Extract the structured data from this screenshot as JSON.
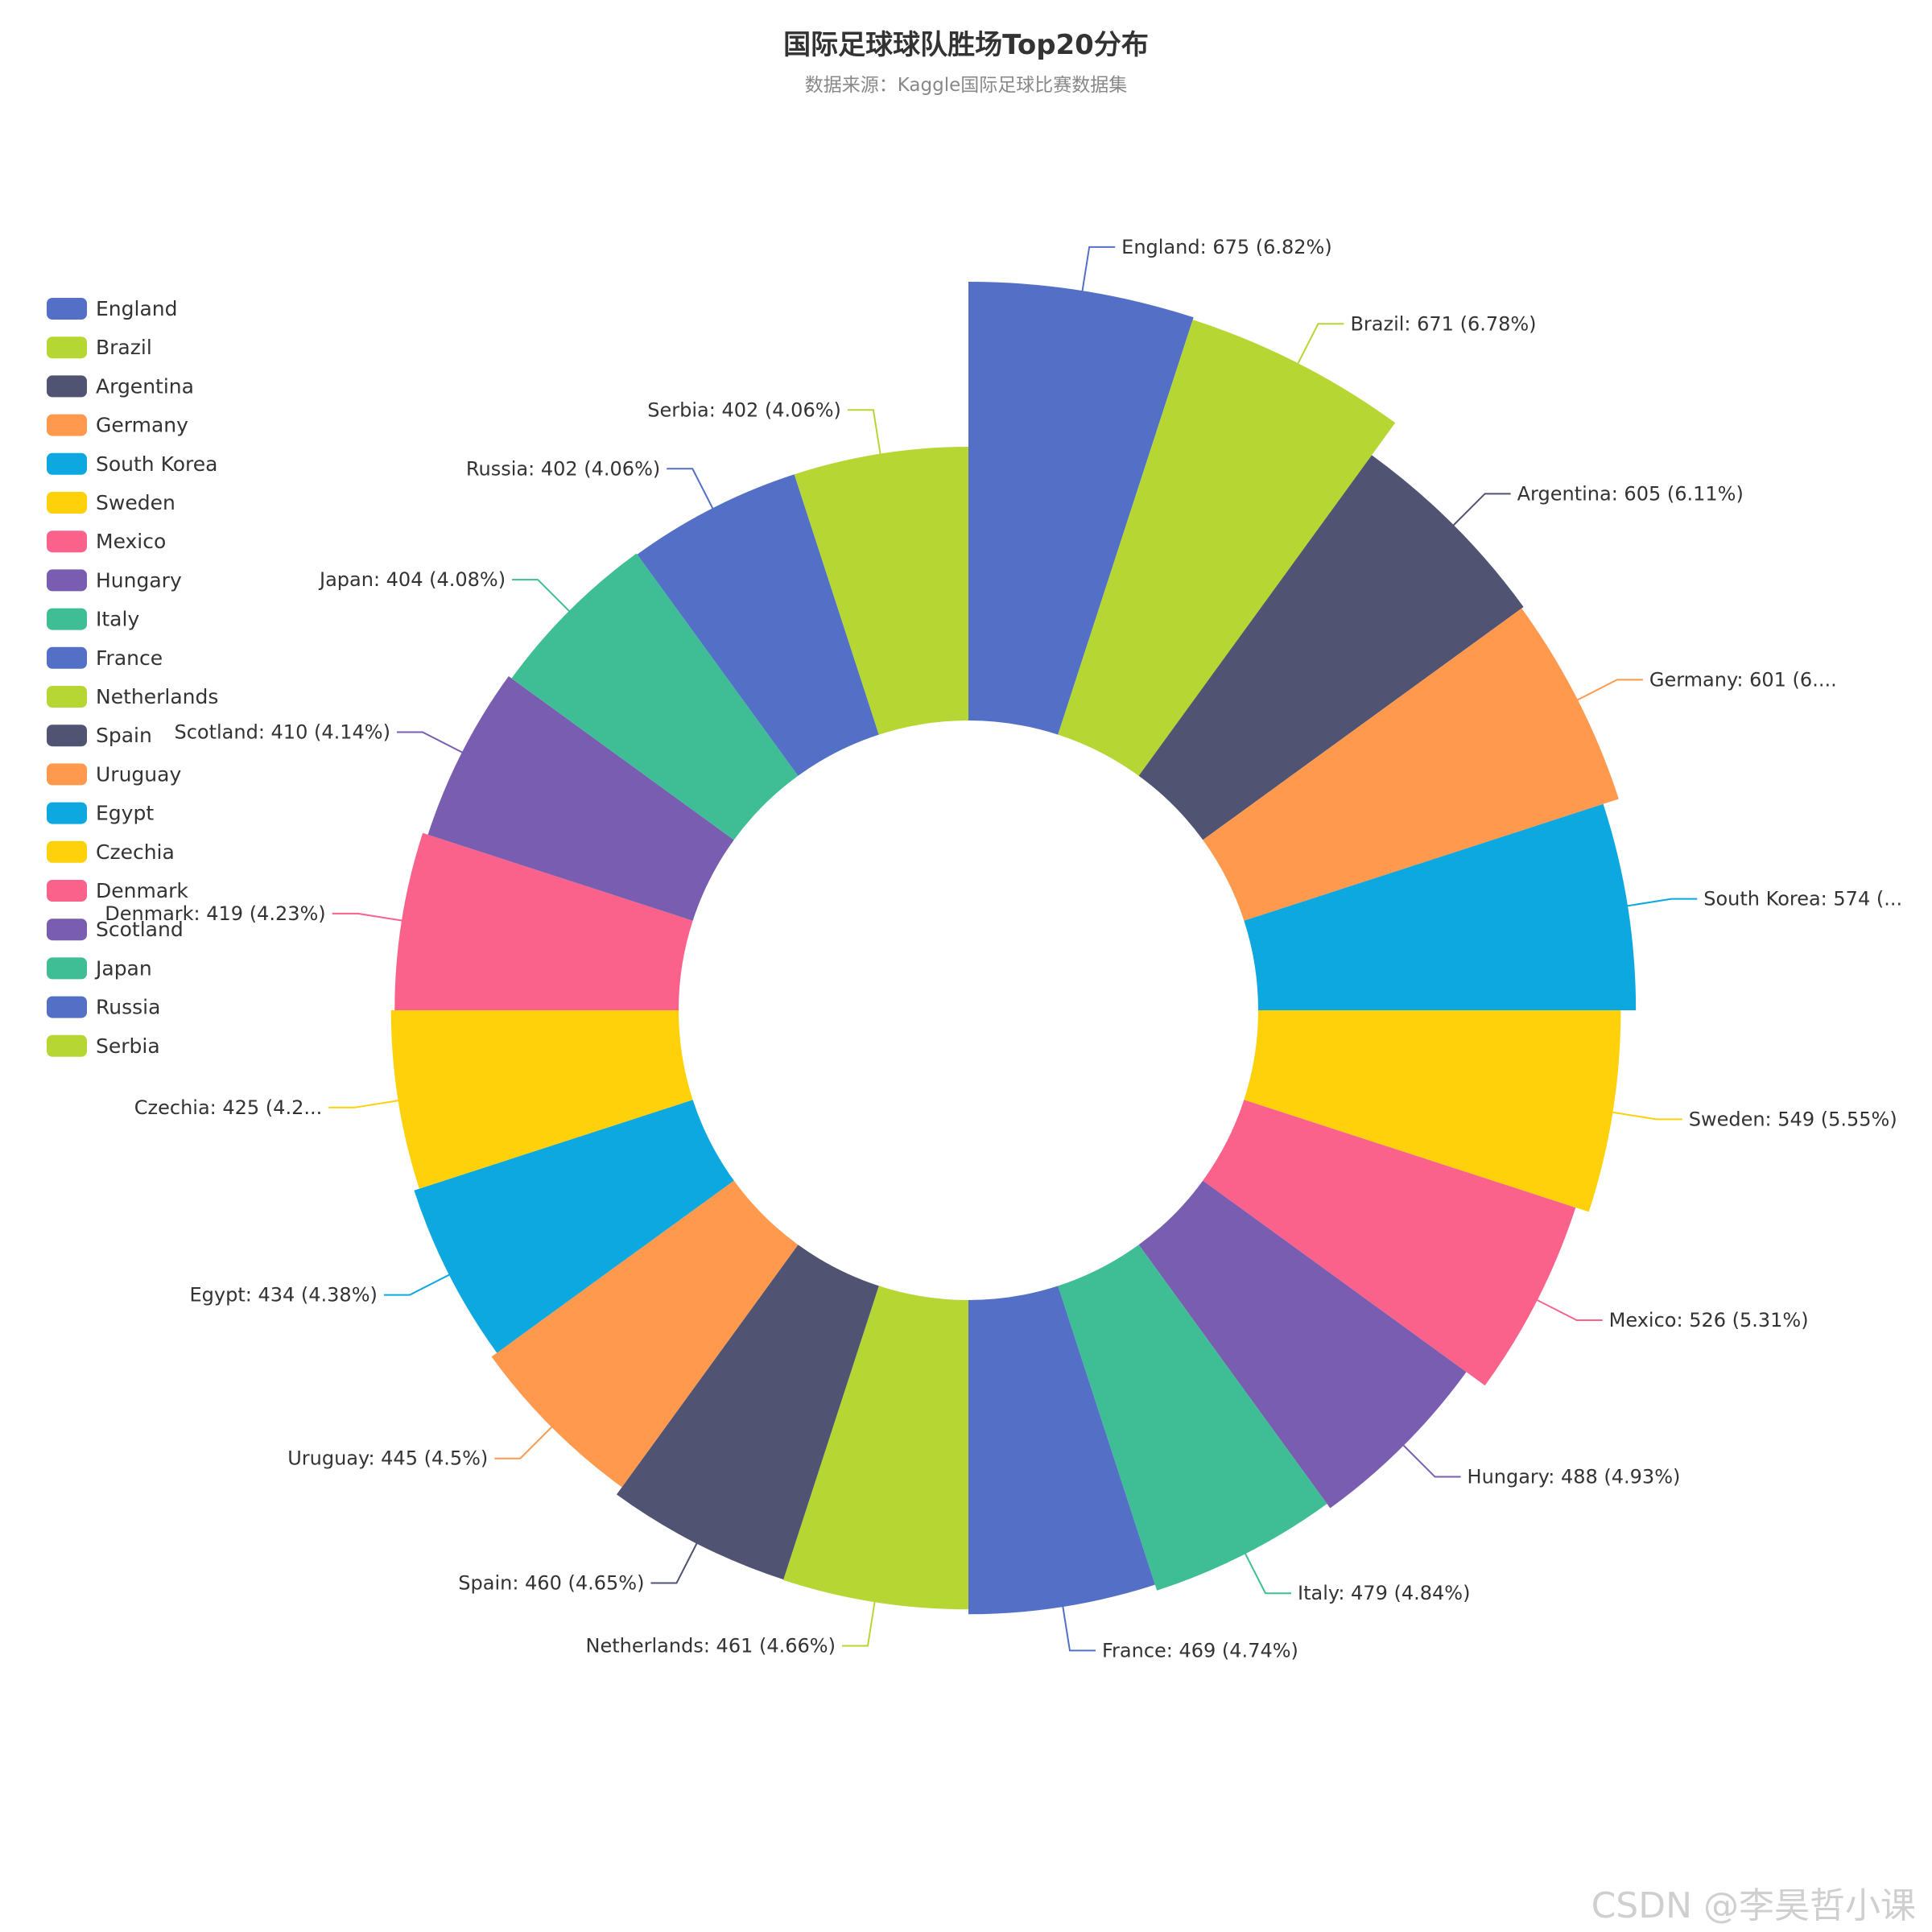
{
  "chart_data": {
    "type": "pie",
    "variant": "rose-donut",
    "title": "国际足球球队胜场Top20分布",
    "subtitle": "数据来源：Kaggle国际足球比赛数据集",
    "legend_position": "left",
    "series": [
      {
        "name": "England",
        "value": 675,
        "label": "England: 675 (6.82%)",
        "color": "#5470c6"
      },
      {
        "name": "Brazil",
        "value": 671,
        "label": "Brazil: 671 (6.78%)",
        "color": "#b6d634"
      },
      {
        "name": "Argentina",
        "value": 605,
        "label": "Argentina: 605 (6.11%)",
        "color": "#505372"
      },
      {
        "name": "Germany",
        "value": 601,
        "label": "Germany: 601 (6....",
        "color": "#ff994d"
      },
      {
        "name": "South Korea",
        "value": 574,
        "label": "South Korea: 574 (...",
        "color": "#0ca8df"
      },
      {
        "name": "Sweden",
        "value": 549,
        "label": "Sweden: 549 (5.55%)",
        "color": "#ffd10a"
      },
      {
        "name": "Mexico",
        "value": 526,
        "label": "Mexico: 526 (5.31%)",
        "color": "#fb628b"
      },
      {
        "name": "Hungary",
        "value": 488,
        "label": "Hungary: 488 (4.93%)",
        "color": "#785db0"
      },
      {
        "name": "Italy",
        "value": 479,
        "label": "Italy: 479 (4.84%)",
        "color": "#3fbe95"
      },
      {
        "name": "France",
        "value": 469,
        "label": "France: 469 (4.74%)",
        "color": "#5470c6"
      },
      {
        "name": "Netherlands",
        "value": 461,
        "label": "Netherlands: 461 (4.66%)",
        "color": "#b6d634"
      },
      {
        "name": "Spain",
        "value": 460,
        "label": "Spain: 460 (4.65%)",
        "color": "#505372"
      },
      {
        "name": "Uruguay",
        "value": 445,
        "label": "Uruguay: 445 (4.5%)",
        "color": "#ff994d"
      },
      {
        "name": "Egypt",
        "value": 434,
        "label": "Egypt: 434 (4.38%)",
        "color": "#0ca8df"
      },
      {
        "name": "Czechia",
        "value": 425,
        "label": "Czechia: 425 (4.2...",
        "color": "#ffd10a"
      },
      {
        "name": "Denmark",
        "value": 419,
        "label": "Denmark: 419 (4.23%)",
        "color": "#fb628b"
      },
      {
        "name": "Scotland",
        "value": 410,
        "label": "Scotland: 410 (4.14%)",
        "color": "#785db0"
      },
      {
        "name": "Japan",
        "value": 404,
        "label": "Japan: 404 (4.08%)",
        "color": "#3fbe95"
      },
      {
        "name": "Russia",
        "value": 402,
        "label": "Russia: 402 (4.06%)",
        "color": "#5470c6"
      },
      {
        "name": "Serbia",
        "value": 402,
        "label": "Serbia: 402 (4.06%)",
        "color": "#b6d634"
      }
    ]
  },
  "watermark": "CSDN @李昊哲小课"
}
